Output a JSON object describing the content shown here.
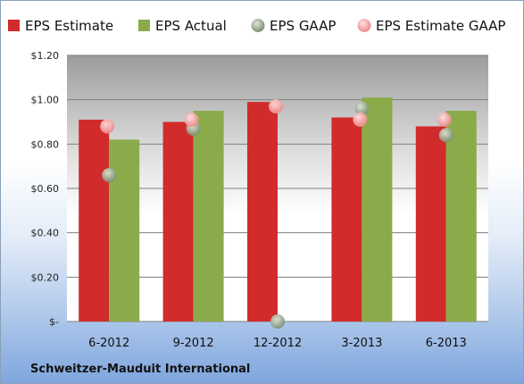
{
  "colors": {
    "estimate": "#d22b2b",
    "actual": "#8bab4a",
    "gaap": "#8f9e86",
    "estimate_gaap": "#f39a9a"
  },
  "company": "Schweitzer-Mauduit International",
  "chart_data": {
    "type": "bar",
    "categories": [
      "6-2012",
      "9-2012",
      "12-2012",
      "3-2013",
      "6-2013"
    ],
    "series": [
      {
        "name": "EPS Estimate",
        "kind": "bar",
        "values": [
          0.91,
          0.9,
          0.99,
          0.92,
          0.88
        ]
      },
      {
        "name": "EPS Actual",
        "kind": "bar",
        "values": [
          0.82,
          0.95,
          null,
          1.01,
          0.95
        ]
      },
      {
        "name": "EPS GAAP",
        "kind": "marker",
        "values": [
          0.66,
          0.87,
          0.0,
          0.96,
          0.84
        ]
      },
      {
        "name": "EPS Estimate GAAP",
        "kind": "marker",
        "values": [
          0.88,
          0.91,
          0.97,
          0.91,
          0.91
        ]
      }
    ],
    "y_ticks": [
      "$-",
      "$0.20",
      "$0.40",
      "$0.60",
      "$0.80",
      "$1.00",
      "$1.20"
    ],
    "y_tick_values": [
      0,
      0.2,
      0.4,
      0.6,
      0.8,
      1.0,
      1.2
    ],
    "ylim": [
      0,
      1.2
    ],
    "grid": true,
    "legend_position": "top"
  }
}
